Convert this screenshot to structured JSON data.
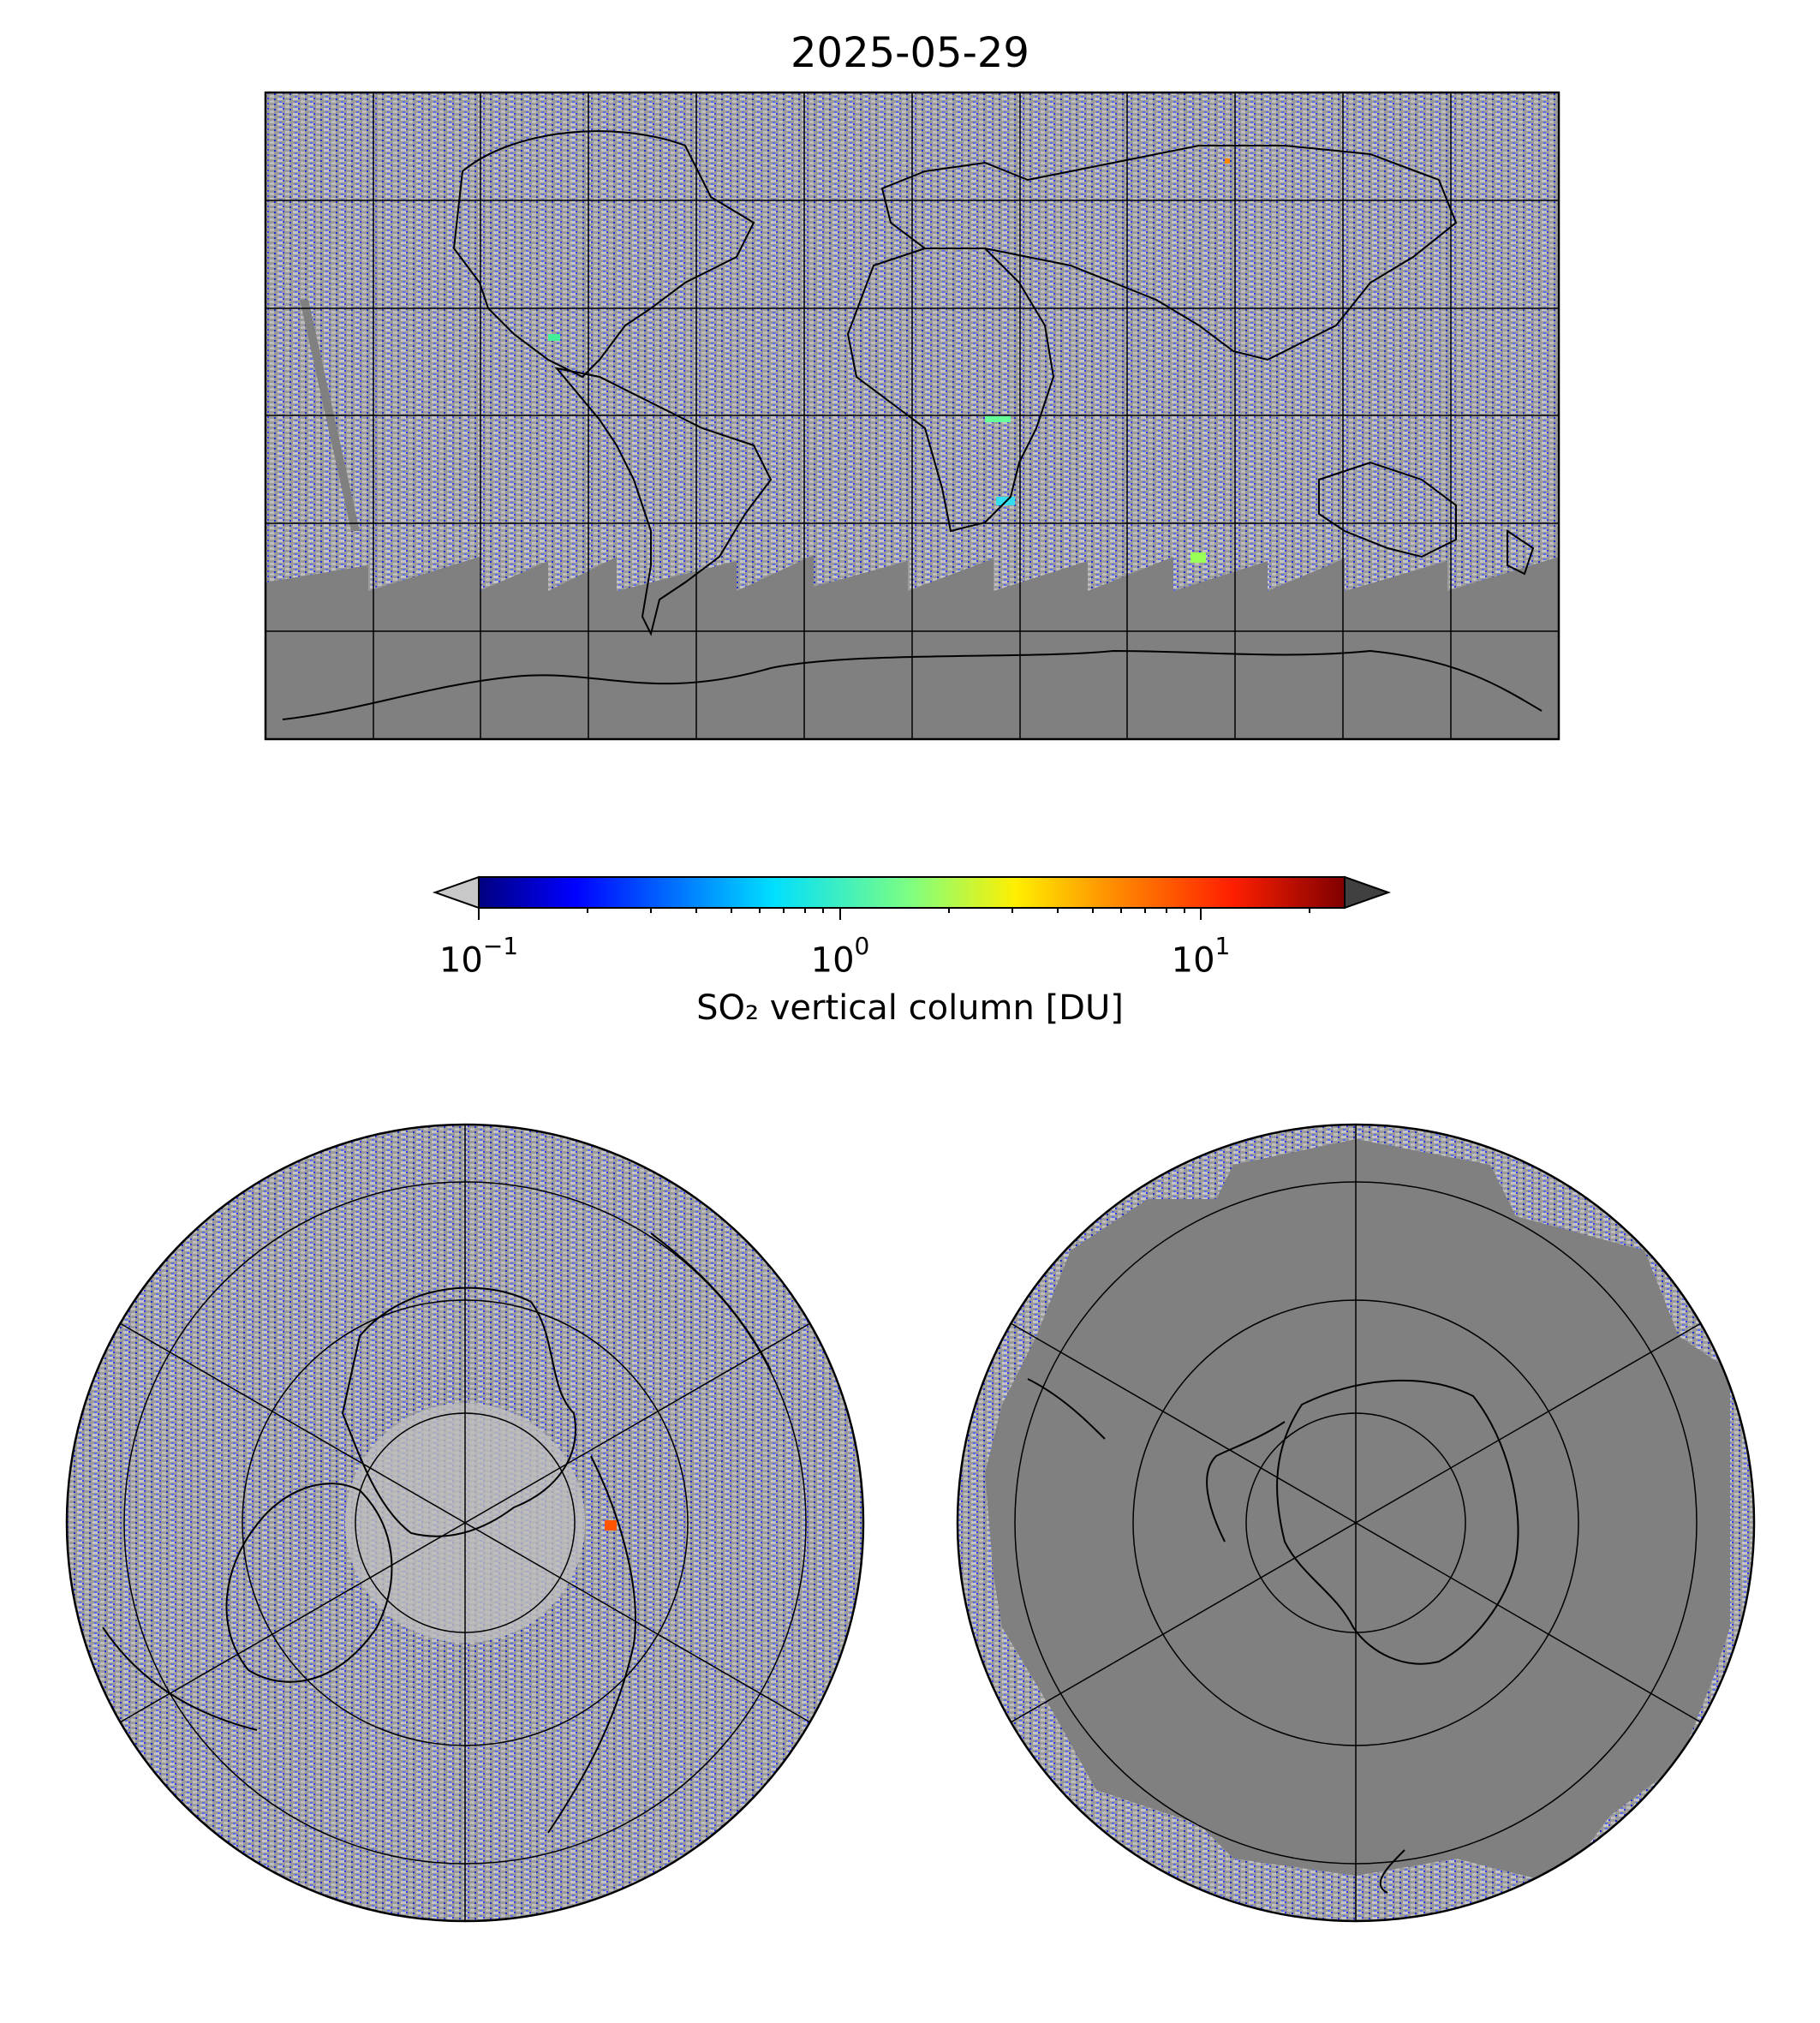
{
  "title": "2025-05-29",
  "colorbar": {
    "label": "SO₂ vertical column [DU]",
    "scale": "log",
    "range": [
      0.1,
      25
    ],
    "extend": "both",
    "under_color": "#c8c8c8",
    "over_color": "#404040",
    "colormap": "jet",
    "ticks": [
      {
        "base": "10",
        "exp": "−1"
      },
      {
        "base": "10",
        "exp": "0"
      },
      {
        "base": "10",
        "exp": "1"
      }
    ]
  },
  "panels": {
    "global": {
      "projection": "plate-carree",
      "lon_range": [
        -180,
        180
      ],
      "lat_range": [
        -90,
        90
      ],
      "gridline_spacing_deg": 30
    },
    "north": {
      "projection": "north-polar-stereographic"
    },
    "south": {
      "projection": "south-polar-stereographic"
    }
  },
  "colors": {
    "no_data": "#808080",
    "below_range": "#c0c0c0",
    "coastline": "#000000"
  }
}
